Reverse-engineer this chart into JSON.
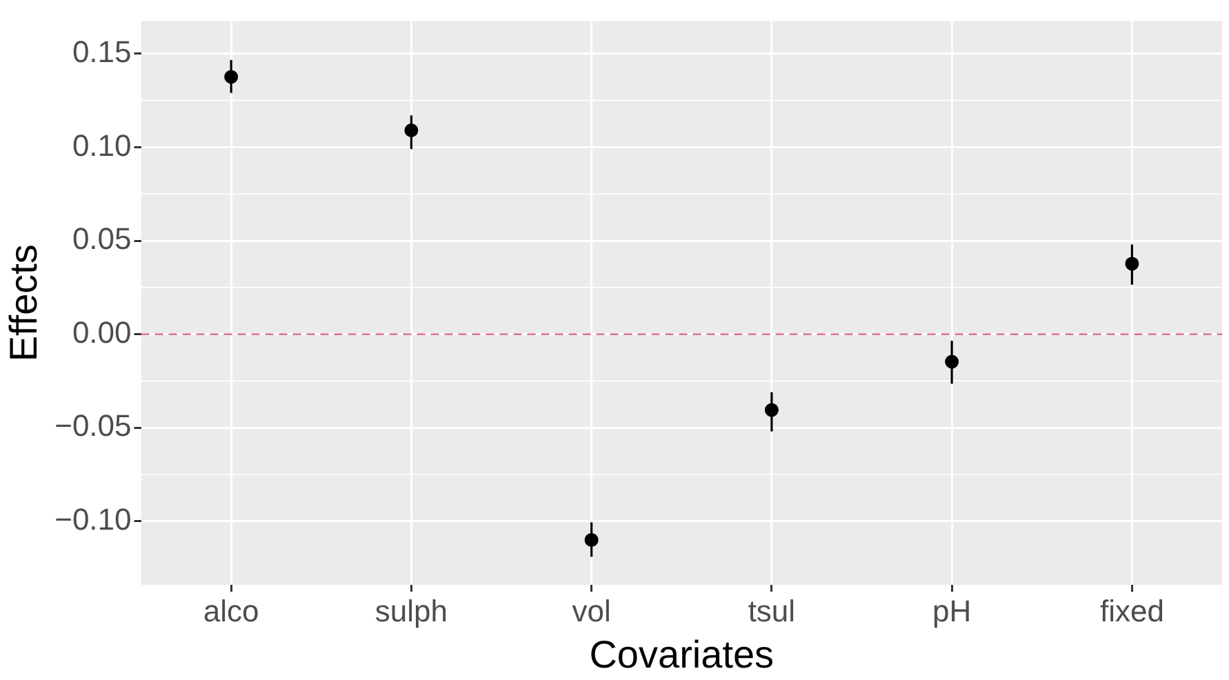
{
  "chart_data": {
    "type": "scatter",
    "xlabel": "Covariates",
    "ylabel": "Effects",
    "categories": [
      "alco",
      "sulph",
      "vol",
      "tsul",
      "pH",
      "fixed"
    ],
    "values": [
      0.1376,
      0.109,
      -0.11,
      -0.0405,
      -0.0147,
      0.0377
    ],
    "errors": [
      [
        0.129,
        0.1466
      ],
      [
        0.099,
        0.117
      ],
      [
        -0.119,
        -0.1006
      ],
      [
        -0.052,
        -0.031
      ],
      [
        -0.0265,
        -0.0035
      ],
      [
        0.0265,
        0.048
      ]
    ],
    "color": "#000000",
    "marker": "circle",
    "ylim": [
      -0.134,
      0.1675
    ],
    "yticks": [
      {
        "value": -0.1,
        "label": "−0.10"
      },
      {
        "value": -0.05,
        "label": "−0.05"
      },
      {
        "value": 0,
        "label": "0.00"
      },
      {
        "value": 0.05,
        "label": "0.05"
      },
      {
        "value": 0.1,
        "label": "0.10"
      },
      {
        "value": 0.15,
        "label": "0.15"
      }
    ],
    "ref_lines": [
      {
        "axis": "y",
        "value": 0,
        "color": "#d9607e",
        "line_style": "dashed"
      }
    ],
    "grid": true
  }
}
